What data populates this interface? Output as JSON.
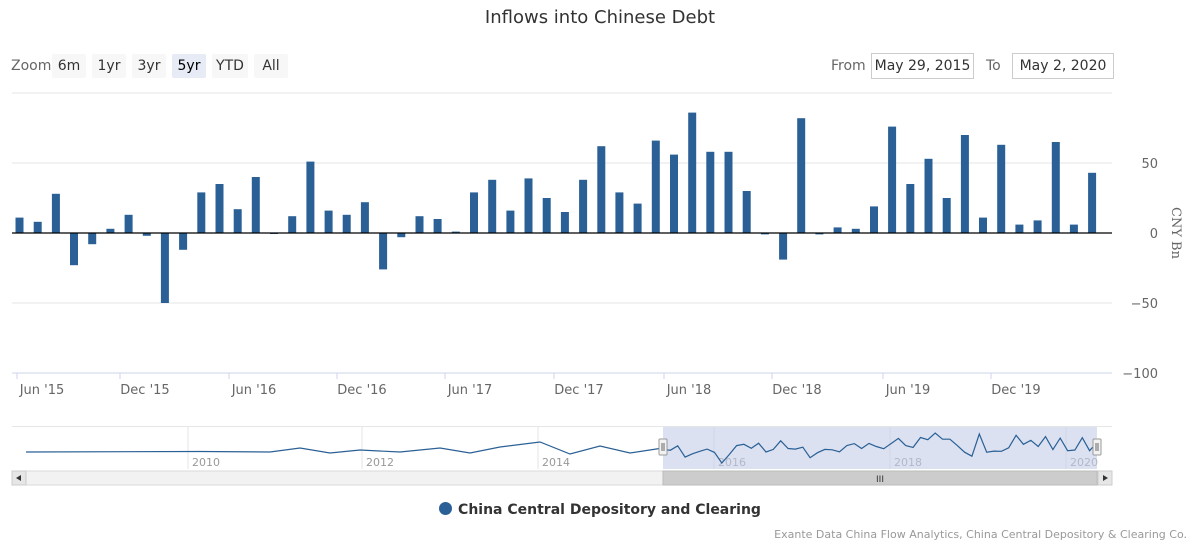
{
  "title": "Inflows into Chinese Debt",
  "zoom": {
    "label": "Zoom",
    "buttons": [
      "6m",
      "1yr",
      "3yr",
      "5yr",
      "YTD",
      "All"
    ],
    "active": "5yr"
  },
  "range": {
    "from_label": "From",
    "from_value": "May 29, 2015",
    "to_label": "To",
    "to_value": "May 2, 2020"
  },
  "legend_label": "China Central Depository and Clearing",
  "credits": "Exante Data China Flow Analytics, China Central Depository & Clearing Co.",
  "colors": {
    "series": "#2a6095",
    "navigator_fill": "#c3cde8",
    "navigator_line": "#2a6095"
  },
  "navigator": {
    "labels": [
      "2010",
      "2012",
      "2014",
      "2016",
      "2018",
      "2020"
    ],
    "scrollbar_grip": "III"
  },
  "chart_data": {
    "type": "bar",
    "title": "Inflows into Chinese Debt",
    "ylabel": "CNY Bn",
    "ylim": [
      -100,
      100
    ],
    "yticks": [
      -100,
      -50,
      0,
      50
    ],
    "xticks": [
      "Jun '15",
      "Dec '15",
      "Jun '16",
      "Dec '16",
      "Jun '17",
      "Dec '17",
      "Jun '18",
      "Dec '18",
      "Jun '19",
      "Dec '19"
    ],
    "series": [
      {
        "name": "China Central Depository and Clearing",
        "categories": [
          "2015-05",
          "2015-06",
          "2015-07",
          "2015-08",
          "2015-09",
          "2015-10",
          "2015-11",
          "2015-12",
          "2016-01",
          "2016-02",
          "2016-03",
          "2016-04",
          "2016-05",
          "2016-06",
          "2016-07",
          "2016-08",
          "2016-09",
          "2016-10",
          "2016-11",
          "2016-12",
          "2017-01",
          "2017-02",
          "2017-03",
          "2017-04",
          "2017-05",
          "2017-06",
          "2017-07",
          "2017-08",
          "2017-09",
          "2017-10",
          "2017-11",
          "2017-12",
          "2018-01",
          "2018-02",
          "2018-03",
          "2018-04",
          "2018-05",
          "2018-06",
          "2018-07",
          "2018-08",
          "2018-09",
          "2018-10",
          "2018-11",
          "2018-12",
          "2019-01",
          "2019-02",
          "2019-03",
          "2019-04",
          "2019-05",
          "2019-06",
          "2019-07",
          "2019-08",
          "2019-09",
          "2019-10",
          "2019-11",
          "2019-12",
          "2020-01",
          "2020-02",
          "2020-03",
          "2020-04"
        ],
        "values": [
          11,
          8,
          28,
          -23,
          -8,
          3,
          13,
          -2,
          -50,
          -12,
          29,
          35,
          17,
          40,
          0,
          12,
          51,
          16,
          13,
          22,
          -26,
          -3,
          12,
          10,
          1,
          29,
          38,
          16,
          39,
          25,
          15,
          38,
          62,
          29,
          21,
          66,
          56,
          86,
          58,
          58,
          30,
          -1,
          -19,
          82,
          -1,
          4,
          3,
          19,
          76,
          35,
          53,
          25,
          70,
          11,
          63,
          6,
          9,
          65,
          6,
          43
        ]
      }
    ],
    "navigator_years": [
      "2010",
      "2012",
      "2014",
      "2016",
      "2018",
      "2020"
    ],
    "legend_position": "bottom-center",
    "grid": true
  }
}
